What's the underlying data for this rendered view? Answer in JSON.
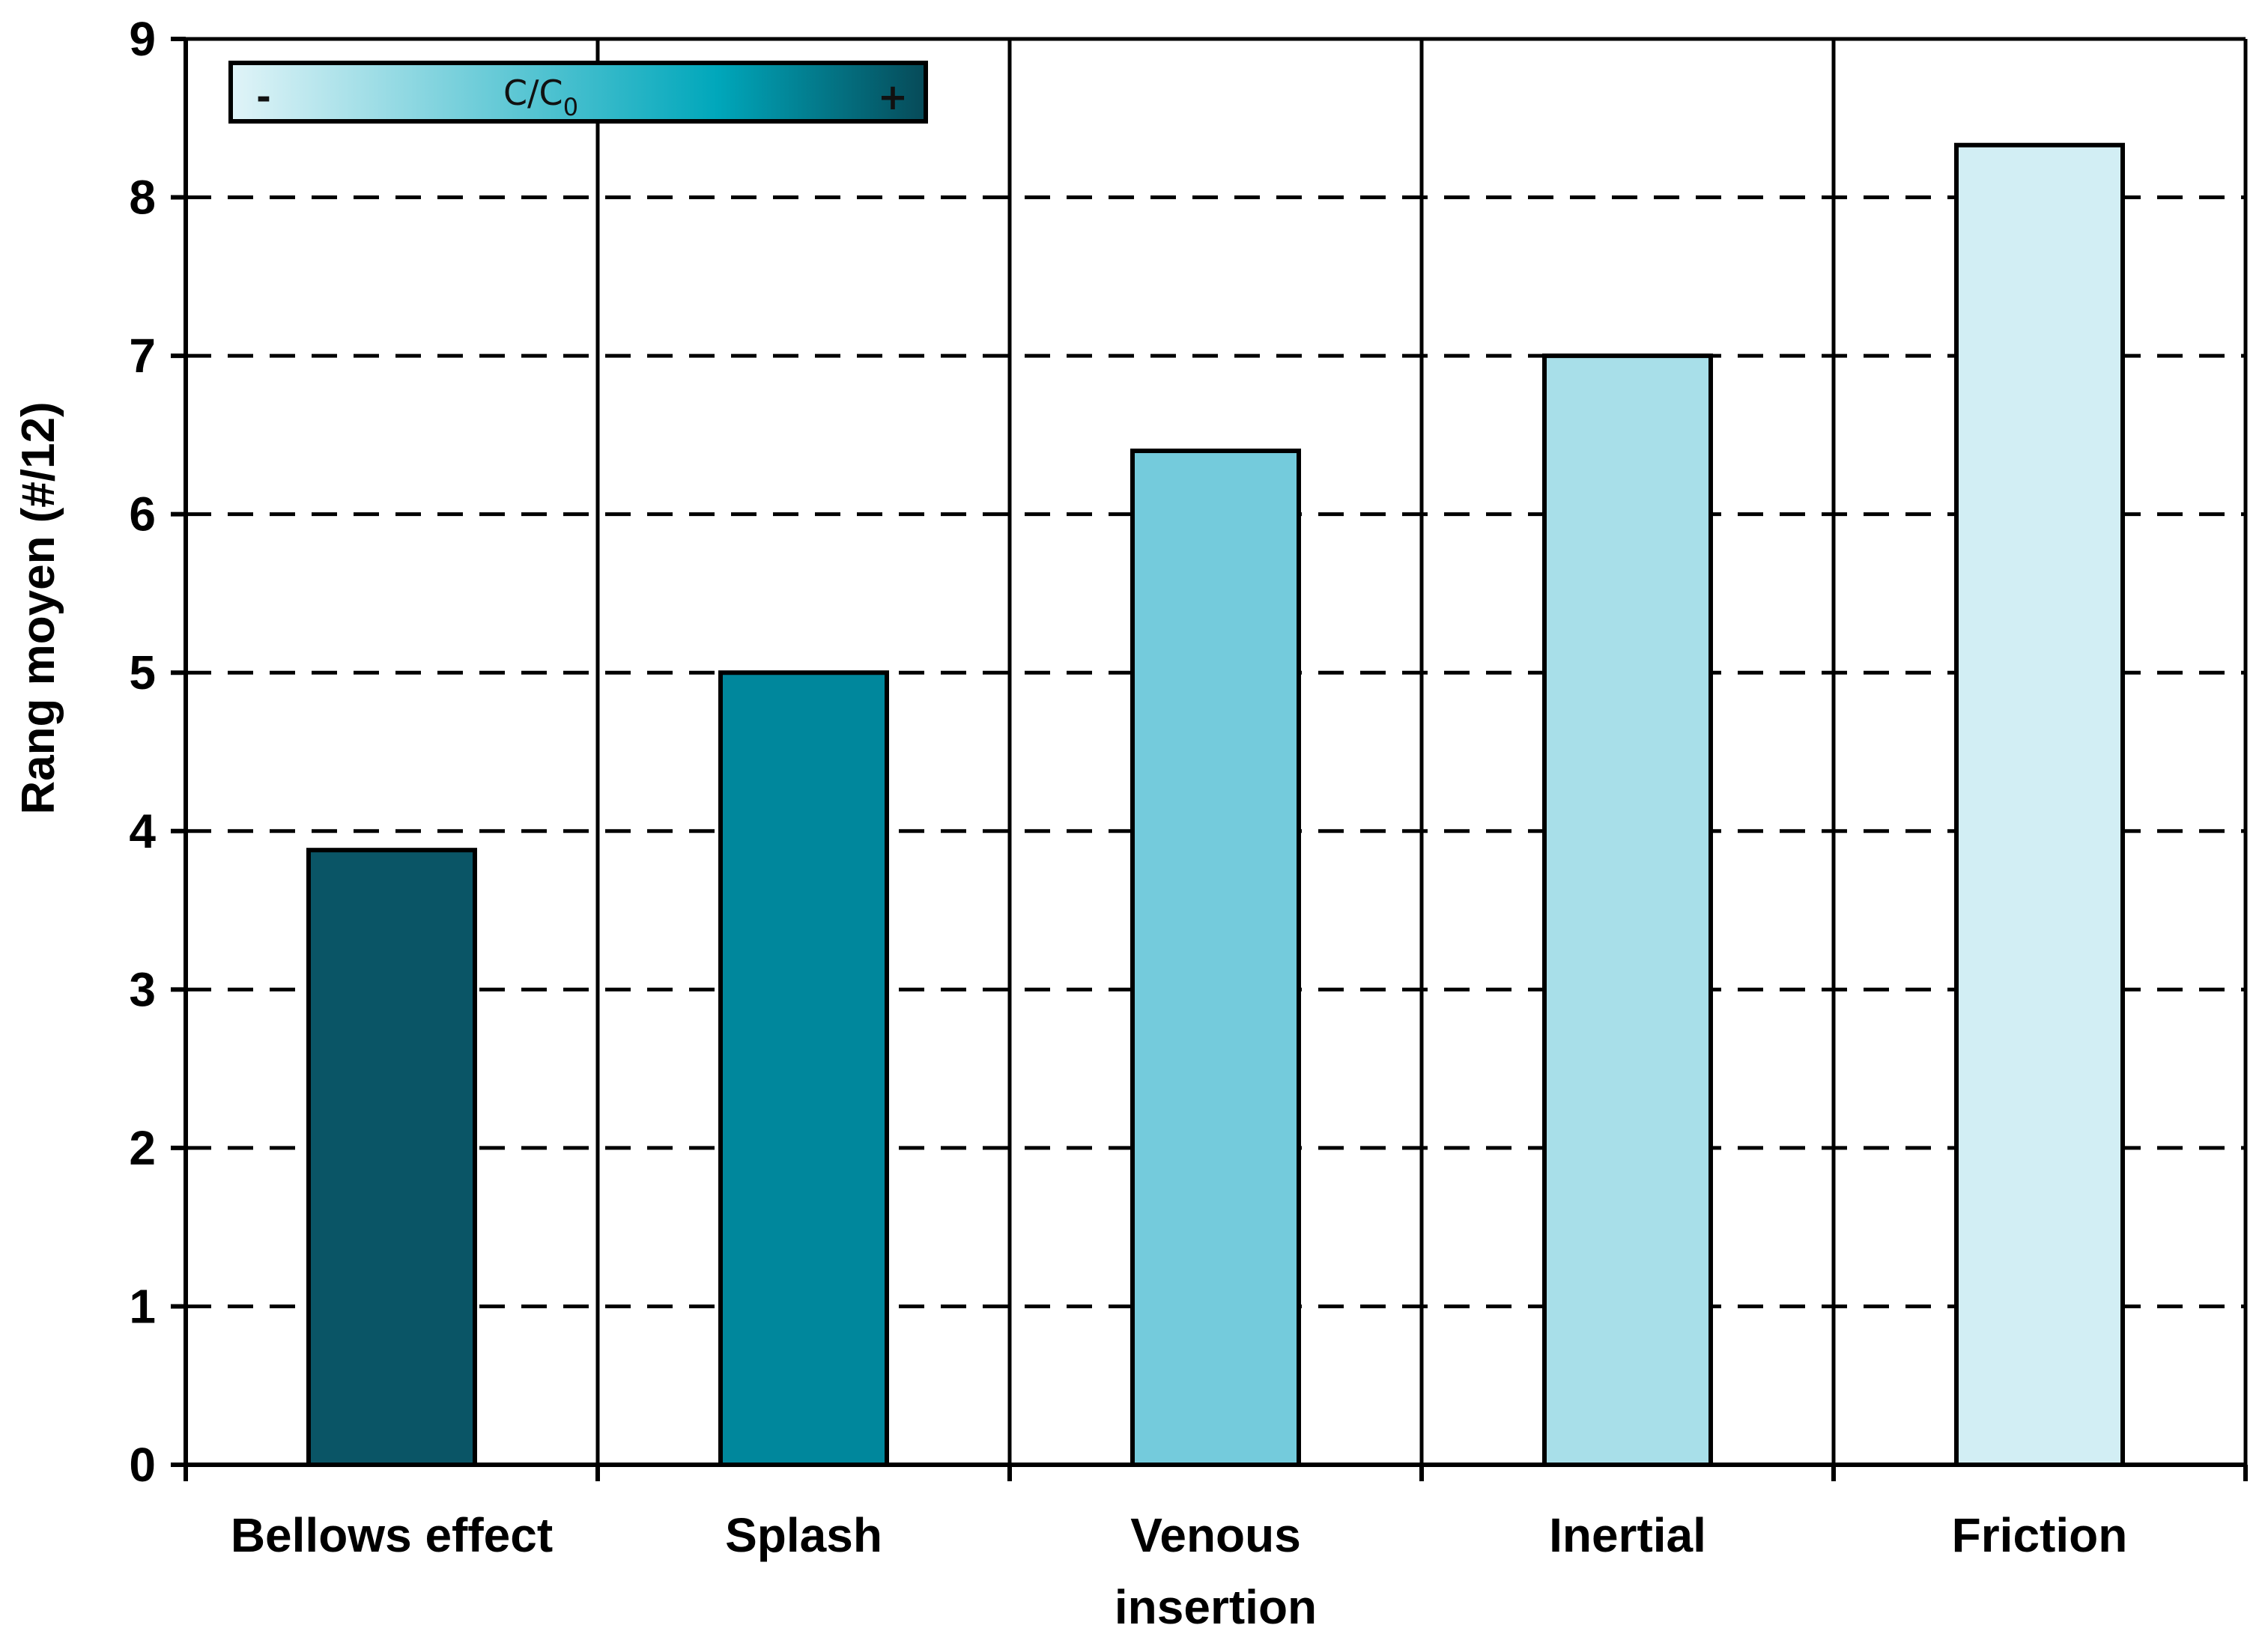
{
  "chart_data": {
    "type": "bar",
    "title": "",
    "xlabel": "",
    "ylabel": "Rang moyen (#/12)",
    "ylim": [
      0,
      9
    ],
    "yticks": [
      "0",
      "1",
      "2",
      "3",
      "4",
      "5",
      "6",
      "7",
      "8",
      "9"
    ],
    "grid": "horizontal dashed",
    "categories": [
      "Bellows effect",
      "Splash",
      "Venous insertion",
      "Inertial",
      "Friction"
    ],
    "category_lines": [
      [
        "Bellows effect"
      ],
      [
        "Splash"
      ],
      [
        "Venous",
        "insertion"
      ],
      [
        "Inertial"
      ],
      [
        "Friction"
      ]
    ],
    "values": [
      3.88,
      5.0,
      6.4,
      7.0,
      8.33
    ],
    "bar_colors": [
      "#0a5566",
      "#00879c",
      "#74cbdc",
      "#a8dfe9",
      "#d2eef4"
    ],
    "legend": {
      "position": "top-left",
      "label_main": "C/C",
      "label_sub": "0",
      "minus": "-",
      "plus": "+",
      "gradient_colors": [
        "#e1f4f8",
        "#00a7bb",
        "#064a58"
      ]
    }
  }
}
